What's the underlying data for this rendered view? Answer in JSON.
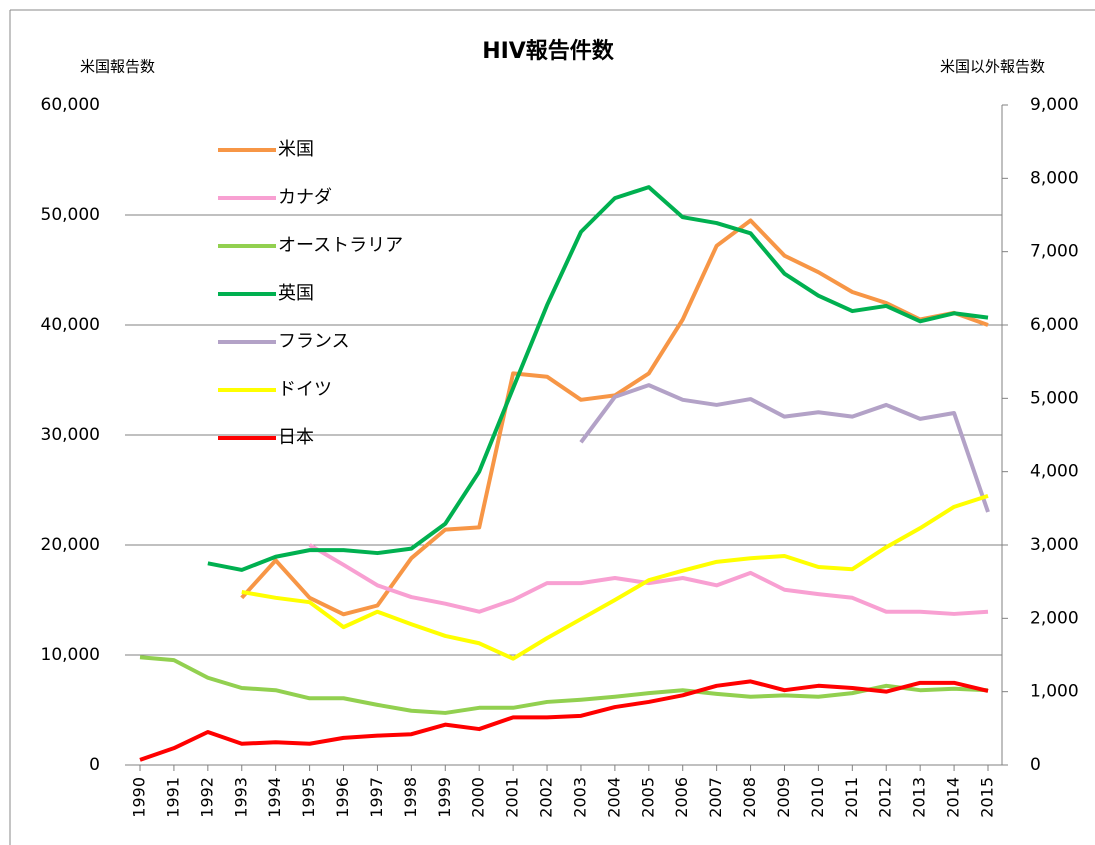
{
  "chart_data": {
    "type": "line",
    "title": "HIV報告件数",
    "y_label": "米国報告数",
    "y2_label": "米国以外報告数",
    "categories": [
      "1990",
      "1991",
      "1992",
      "1993",
      "1994",
      "1995",
      "1996",
      "1997",
      "1998",
      "1999",
      "2000",
      "2001",
      "2002",
      "2003",
      "2004",
      "2005",
      "2006",
      "2007",
      "2008",
      "2009",
      "2010",
      "2011",
      "2012",
      "2013",
      "2014",
      "2015"
    ],
    "ylim": [
      0,
      60000
    ],
    "yticks": [
      0,
      {
        "value": 10000,
        "label": "10,000"
      },
      {
        "value": 20000,
        "label": "20,000"
      },
      {
        "value": 30000,
        "label": "30,000"
      },
      {
        "value": 40000,
        "label": "40,000"
      },
      {
        "value": 50000,
        "label": "50,000"
      },
      {
        "value": 60000,
        "label": "60,000"
      }
    ],
    "y2lim": [
      0,
      9000
    ],
    "y2ticks": [
      0,
      {
        "value": 1000,
        "label": "1,000"
      },
      {
        "value": 2000,
        "label": "2,000"
      },
      {
        "value": 3000,
        "label": "3,000"
      },
      {
        "value": 4000,
        "label": "4,000"
      },
      {
        "value": 5000,
        "label": "5,000"
      },
      {
        "value": 6000,
        "label": "6,000"
      },
      {
        "value": 7000,
        "label": "7,000"
      },
      {
        "value": 8000,
        "label": "8,000"
      },
      {
        "value": 9000,
        "label": "9,000"
      }
    ],
    "grid": true,
    "legend": "upper left",
    "series": [
      {
        "name": "米国",
        "color": "#f79646",
        "values": [
          null,
          null,
          null,
          15200,
          18600,
          15200,
          13700,
          14500,
          18800,
          21400,
          21600,
          35600,
          35300,
          33200,
          33600,
          35600,
          40500,
          47200,
          49500,
          46300,
          44800,
          43000,
          42000,
          40500,
          41100,
          40000
        ]
      },
      {
        "name": "カナダ",
        "color": "#f8a0d2",
        "axis": "y2",
        "values": [
          null,
          null,
          null,
          null,
          null,
          3000,
          2730,
          2450,
          2290,
          2200,
          2090,
          2250,
          2480,
          2480,
          2550,
          2480,
          2550,
          2450,
          2620,
          2390,
          2330,
          2280,
          2090,
          2090,
          2060,
          2090
        ]
      },
      {
        "name": "オーストラリア",
        "color": "#92d050",
        "axis": "y2",
        "values": [
          1470,
          1430,
          1190,
          1050,
          1020,
          910,
          910,
          820,
          740,
          710,
          780,
          780,
          860,
          890,
          930,
          980,
          1020,
          970,
          930,
          950,
          930,
          980,
          1080,
          1020,
          1040,
          1020
        ]
      },
      {
        "name": "英国",
        "color": "#00b050",
        "axis": "y2",
        "values": [
          null,
          null,
          2750,
          2660,
          2840,
          2930,
          2930,
          2890,
          2950,
          3290,
          4000,
          5140,
          6270,
          7270,
          7730,
          7880,
          7470,
          7390,
          7250,
          6700,
          6400,
          6190,
          6260,
          6050,
          6160,
          6100
        ]
      },
      {
        "name": "フランス",
        "color": "#b3a2c7",
        "axis": "y2",
        "values": [
          null,
          null,
          null,
          null,
          null,
          null,
          null,
          null,
          null,
          null,
          null,
          null,
          null,
          4400,
          5020,
          5180,
          4980,
          4910,
          4990,
          4750,
          4810,
          4750,
          4910,
          4720,
          4800,
          3450
        ]
      },
      {
        "name": "ドイツ",
        "color": "#ffff00",
        "axis": "y2",
        "values": [
          null,
          null,
          null,
          2360,
          2280,
          2220,
          1880,
          2090,
          1920,
          1760,
          1660,
          1450,
          1730,
          1990,
          2250,
          2520,
          2650,
          2770,
          2820,
          2850,
          2700,
          2670,
          2970,
          3230,
          3520,
          3670
        ]
      },
      {
        "name": "日本",
        "color": "#ff0000",
        "axis": "y2",
        "values": [
          70,
          230,
          450,
          290,
          310,
          290,
          370,
          400,
          420,
          550,
          490,
          650,
          650,
          670,
          790,
          860,
          950,
          1080,
          1140,
          1020,
          1080,
          1050,
          1000,
          1120,
          1120,
          1010
        ]
      }
    ]
  }
}
